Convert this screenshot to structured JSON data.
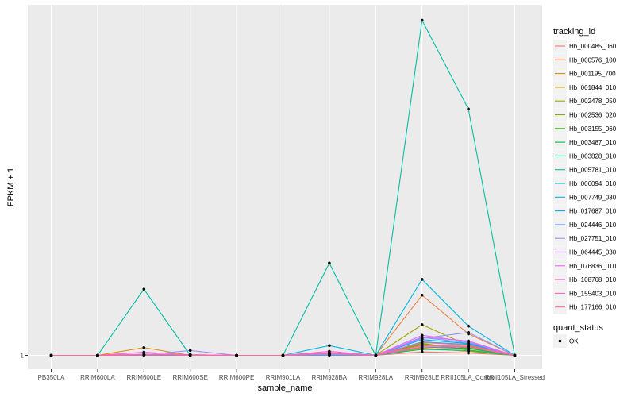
{
  "chart_data": {
    "type": "line",
    "title": "",
    "xlabel": "sample_name",
    "ylabel": "FPKM + 1",
    "y_ticks": [
      1
    ],
    "ylim": [
      0,
      100
    ],
    "categories": [
      "PB350LA",
      "RRIM600LA",
      "RRIM600LE",
      "RRIM600SE",
      "RRIM600PE",
      "RRIM901LA",
      "RRIM928BA",
      "RRIM928LA",
      "RRIM928LE",
      "RRII105LA_Control",
      "RRII105LA_Stressed"
    ],
    "legend": {
      "title": "tracking_id",
      "position": "right"
    },
    "shape_legend": {
      "title": "quant_status",
      "items": [
        "OK"
      ]
    },
    "series": [
      {
        "name": "Hb_000485_060",
        "color": "#F8766D",
        "values": [
          0,
          0,
          0.3,
          0.1,
          0,
          0,
          0.4,
          0,
          1.2,
          0.8,
          0
        ]
      },
      {
        "name": "Hb_000576_100",
        "color": "#EE8044",
        "values": [
          0,
          0,
          0.2,
          0.1,
          0,
          0,
          0.5,
          0,
          21.0,
          7.5,
          0
        ]
      },
      {
        "name": "Hb_001195_700",
        "color": "#DB8E00",
        "values": [
          0,
          0,
          2.7,
          0,
          0,
          0,
          0.3,
          0,
          3.4,
          3.2,
          0
        ]
      },
      {
        "name": "Hb_001844_010",
        "color": "#C09B00",
        "values": [
          0,
          0,
          0.2,
          0.1,
          0,
          0,
          0.2,
          0,
          2.5,
          1.4,
          0
        ]
      },
      {
        "name": "Hb_002478_050",
        "color": "#A3A500",
        "values": [
          0,
          0,
          0.3,
          0.2,
          0,
          0,
          0.2,
          0,
          10.7,
          3.4,
          0
        ]
      },
      {
        "name": "Hb_002536_020",
        "color": "#7CAE00",
        "values": [
          0,
          0,
          0.1,
          0,
          0,
          0,
          0.1,
          0,
          4.2,
          1.9,
          0
        ]
      },
      {
        "name": "Hb_003155_060",
        "color": "#39B600",
        "values": [
          0,
          0,
          0.2,
          0.1,
          0,
          0,
          0.2,
          0,
          3.8,
          2.6,
          0
        ]
      },
      {
        "name": "Hb_003487_010",
        "color": "#00BB4E",
        "values": [
          0,
          0,
          0.1,
          0,
          0,
          0,
          0.1,
          0,
          2.9,
          2.4,
          0
        ]
      },
      {
        "name": "Hb_003828_010",
        "color": "#00BF7D",
        "values": [
          0,
          0,
          0.1,
          0.1,
          0,
          0,
          0.1,
          0,
          2.1,
          1.7,
          0
        ]
      },
      {
        "name": "Hb_005781_010",
        "color": "#00C0A3",
        "values": [
          0,
          0,
          23.1,
          0,
          0,
          0,
          32.2,
          0,
          117.0,
          86.0,
          0
        ]
      },
      {
        "name": "Hb_006094_010",
        "color": "#00BFC4",
        "values": [
          0,
          0,
          0.2,
          0.1,
          0,
          0,
          0.3,
          0,
          4.7,
          3.8,
          0
        ]
      },
      {
        "name": "Hb_007749_030",
        "color": "#00B8E7",
        "values": [
          0,
          0,
          0.3,
          0.2,
          0,
          0,
          3.4,
          0,
          26.5,
          10.2,
          0
        ]
      },
      {
        "name": "Hb_017687_010",
        "color": "#00A9FF",
        "values": [
          0,
          0,
          0.2,
          0.1,
          0,
          0,
          0.4,
          0,
          5.5,
          4.1,
          0
        ]
      },
      {
        "name": "Hb_024446_010",
        "color": "#619CFF",
        "values": [
          0,
          0,
          0.1,
          0.1,
          0,
          0,
          0.2,
          0,
          6.2,
          4.4,
          0
        ]
      },
      {
        "name": "Hb_027751_010",
        "color": "#9590FF",
        "values": [
          0,
          0,
          0.2,
          1.7,
          0,
          0,
          0.3,
          0,
          5.9,
          8.0,
          0
        ]
      },
      {
        "name": "Hb_064445_030",
        "color": "#C77CFF",
        "values": [
          0,
          0,
          0.3,
          0.1,
          0,
          0,
          0.5,
          0,
          7.0,
          4.7,
          0
        ]
      },
      {
        "name": "Hb_076836_010",
        "color": "#E76BF3",
        "values": [
          0,
          0,
          0.4,
          0.1,
          0,
          0,
          1.0,
          0,
          6.4,
          5.0,
          0
        ]
      },
      {
        "name": "Hb_108768_010",
        "color": "#FA62DB",
        "values": [
          0,
          0,
          1.1,
          0.2,
          0,
          0,
          1.4,
          0,
          3.0,
          2.9,
          0
        ]
      },
      {
        "name": "Hb_155403_010",
        "color": "#FF62BC",
        "values": [
          0,
          0,
          0.3,
          0.1,
          0,
          0,
          0.6,
          0,
          4.5,
          3.6,
          0
        ]
      },
      {
        "name": "Hb_177166_010",
        "color": "#FF6C91",
        "values": [
          0,
          0,
          0.2,
          0.1,
          0,
          0,
          0.7,
          0,
          3.6,
          3.0,
          0
        ]
      }
    ]
  },
  "colors": {
    "panel_bg": "#EBEBEB",
    "grid_major": "#FFFFFF",
    "point": "#000000"
  }
}
